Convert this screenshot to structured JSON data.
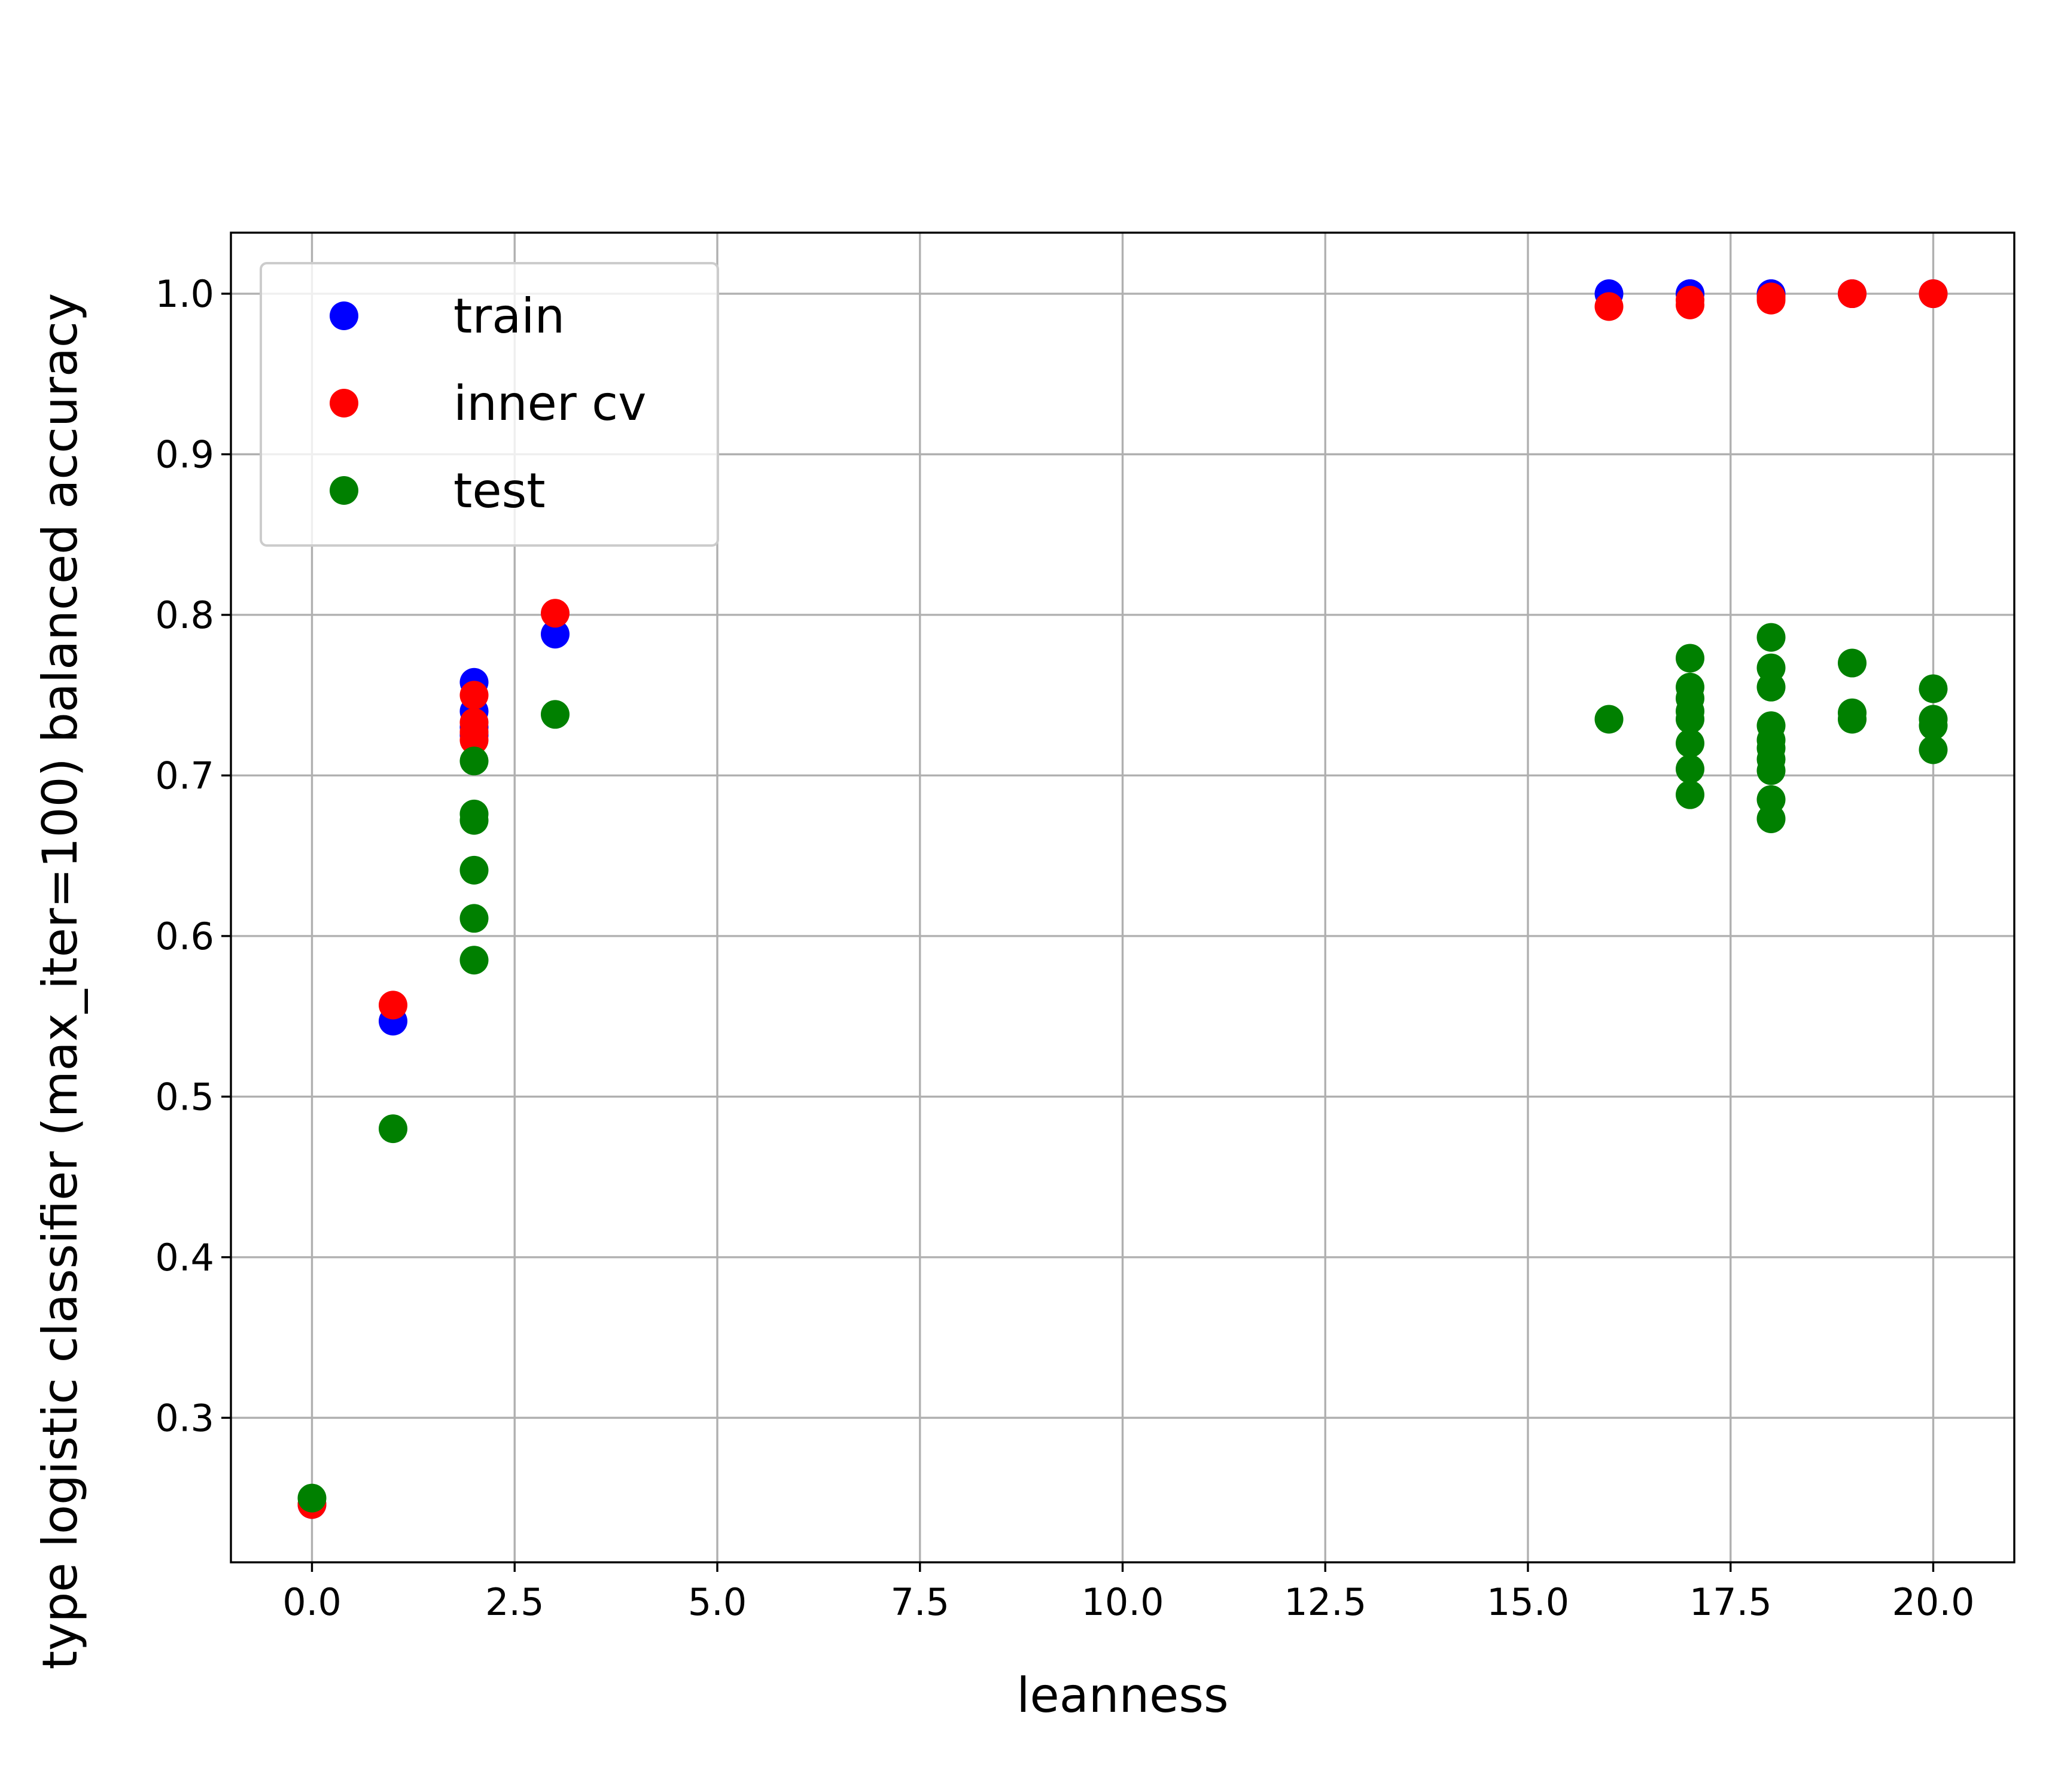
{
  "chart_data": {
    "type": "scatter",
    "title": "",
    "xlabel": "leanness",
    "ylabel": "type logistic classifier (max_iter=100) balanced accuracy",
    "xlim": [
      -1.0,
      21.0
    ],
    "ylim": [
      0.21,
      1.038
    ],
    "xticks": [
      0.0,
      2.5,
      5.0,
      7.5,
      10.0,
      12.5,
      15.0,
      17.5,
      20.0
    ],
    "xtick_labels": [
      "0.0",
      "2.5",
      "5.0",
      "7.5",
      "10.0",
      "12.5",
      "15.0",
      "17.5",
      "20.0"
    ],
    "yticks": [
      0.3,
      0.4,
      0.5,
      0.6,
      0.7,
      0.8,
      0.9,
      1.0
    ],
    "ytick_labels": [
      "0.3",
      "0.4",
      "0.5",
      "0.6",
      "0.7",
      "0.8",
      "0.9",
      "1.0"
    ],
    "grid": true,
    "legend_position": "top-left",
    "series": [
      {
        "name": "train",
        "color": "#0000ff",
        "points": [
          [
            0,
            0.246
          ],
          [
            1,
            0.547
          ],
          [
            2,
            0.758
          ],
          [
            2,
            0.74
          ],
          [
            2,
            0.73
          ],
          [
            2,
            0.725
          ],
          [
            3,
            0.788
          ],
          [
            16,
            1.0
          ],
          [
            17,
            1.0
          ],
          [
            17,
            1.0
          ],
          [
            18,
            1.0
          ],
          [
            18,
            1.0
          ],
          [
            19,
            1.0
          ],
          [
            20,
            1.0
          ]
        ]
      },
      {
        "name": "inner cv",
        "color": "#ff0000",
        "points": [
          [
            0,
            0.246
          ],
          [
            1,
            0.557
          ],
          [
            2,
            0.75
          ],
          [
            2,
            0.733
          ],
          [
            2,
            0.727
          ],
          [
            2,
            0.722
          ],
          [
            3,
            0.801
          ],
          [
            16,
            0.992
          ],
          [
            17,
            0.993
          ],
          [
            17,
            0.996
          ],
          [
            18,
            0.996
          ],
          [
            18,
            0.998
          ],
          [
            19,
            1.0
          ],
          [
            20,
            1.0
          ]
        ]
      },
      {
        "name": "test",
        "color": "#008000",
        "points": [
          [
            0,
            0.25
          ],
          [
            1,
            0.48
          ],
          [
            2,
            0.709
          ],
          [
            2,
            0.676
          ],
          [
            2,
            0.672
          ],
          [
            2,
            0.641
          ],
          [
            2,
            0.611
          ],
          [
            2,
            0.585
          ],
          [
            3,
            0.738
          ],
          [
            16,
            0.735
          ],
          [
            17,
            0.773
          ],
          [
            17,
            0.755
          ],
          [
            17,
            0.748
          ],
          [
            17,
            0.74
          ],
          [
            17,
            0.735
          ],
          [
            17,
            0.72
          ],
          [
            17,
            0.704
          ],
          [
            17,
            0.688
          ],
          [
            18,
            0.786
          ],
          [
            18,
            0.767
          ],
          [
            18,
            0.755
          ],
          [
            18,
            0.731
          ],
          [
            18,
            0.722
          ],
          [
            18,
            0.717
          ],
          [
            18,
            0.71
          ],
          [
            18,
            0.703
          ],
          [
            18,
            0.685
          ],
          [
            18,
            0.673
          ],
          [
            19,
            0.77
          ],
          [
            19,
            0.739
          ],
          [
            19,
            0.735
          ],
          [
            20,
            0.754
          ],
          [
            20,
            0.735
          ],
          [
            20,
            0.731
          ],
          [
            20,
            0.716
          ]
        ]
      }
    ]
  }
}
